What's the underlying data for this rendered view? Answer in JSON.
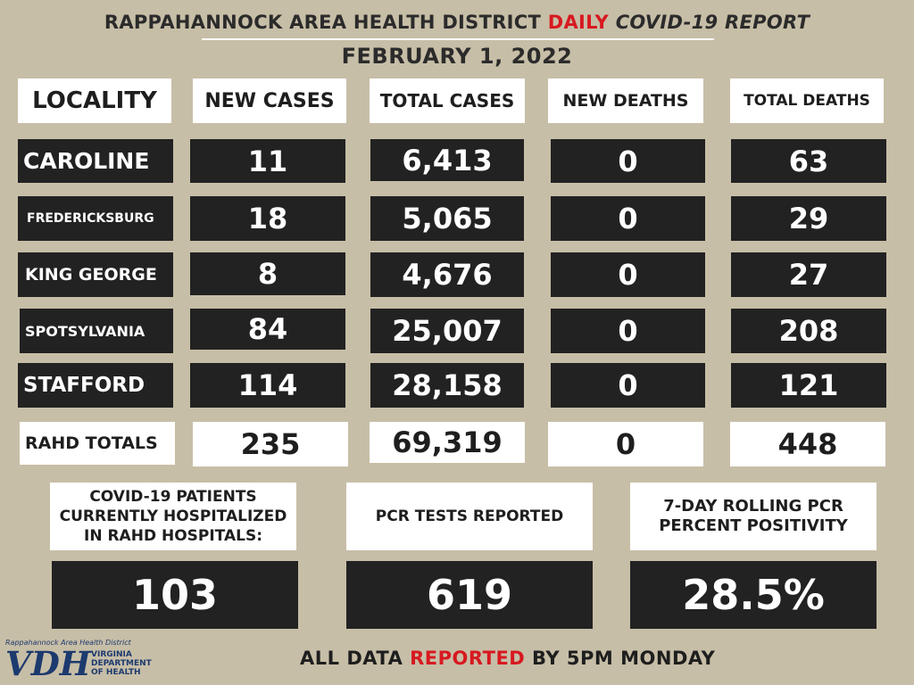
{
  "title": {
    "part1": "RAPPAHANNOCK AREA HEALTH DISTRICT ",
    "part2": "DAILY",
    "part3": " COVID-19 REPORT",
    "date": "FEBRUARY 1, 2022"
  },
  "colors": {
    "background": "#c7bea7",
    "dark_box": "#222222",
    "light_box": "#ffffff",
    "accent_red": "#d71920",
    "logo_blue": "#1d3a6e"
  },
  "chart_data": {
    "type": "table",
    "columns": [
      "LOCALITY",
      "NEW CASES",
      "TOTAL CASES",
      "NEW DEATHS",
      "TOTAL DEATHS"
    ],
    "rows": [
      {
        "locality": "CAROLINE",
        "new_cases": "11",
        "total_cases": "6,413",
        "new_deaths": "0",
        "total_deaths": "63"
      },
      {
        "locality": "FREDERICKSBURG",
        "new_cases": "18",
        "total_cases": "5,065",
        "new_deaths": "0",
        "total_deaths": "29"
      },
      {
        "locality": "KING GEORGE",
        "new_cases": "8",
        "total_cases": "4,676",
        "new_deaths": "0",
        "total_deaths": "27"
      },
      {
        "locality": "SPOTSYLVANIA",
        "new_cases": "84",
        "total_cases": "25,007",
        "new_deaths": "0",
        "total_deaths": "208"
      },
      {
        "locality": "STAFFORD",
        "new_cases": "114",
        "total_cases": "28,158",
        "new_deaths": "0",
        "total_deaths": "121"
      }
    ],
    "totals": {
      "locality": "RAHD TOTALS",
      "new_cases": "235",
      "total_cases": "69,319",
      "new_deaths": "0",
      "total_deaths": "448"
    }
  },
  "stats": [
    {
      "label": "COVID-19 PATIENTS CURRENTLY HOSPITALIZED IN RAHD HOSPITALS:",
      "value": "103"
    },
    {
      "label": "PCR TESTS REPORTED",
      "value": "619"
    },
    {
      "label": "7-DAY ROLLING PCR PERCENT POSITIVITY",
      "value": "28.5%"
    }
  ],
  "footer": {
    "part1": "ALL DATA ",
    "part2": "REPORTED",
    "part3": " BY 5PM MONDAY"
  },
  "logo": {
    "org": "Rappahannock Area Health District",
    "mark": "VDH",
    "dept_line1": "VIRGINIA",
    "dept_line2": "DEPARTMENT",
    "dept_line3": "OF HEALTH"
  }
}
